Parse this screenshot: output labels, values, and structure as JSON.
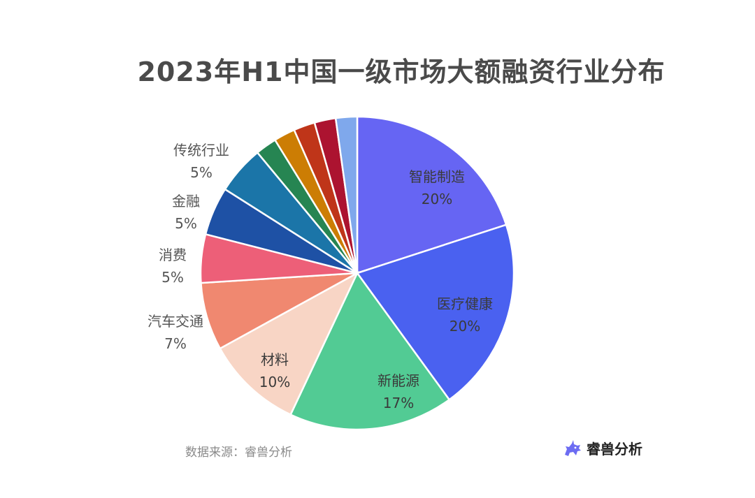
{
  "chart_data": {
    "type": "pie",
    "title": "2023年H1中国一级市场大额融资行业分布",
    "slices": [
      {
        "label": "智能制造",
        "value": 20,
        "display": "20%",
        "color": "#6665f3",
        "text_color": "#3a3a3a"
      },
      {
        "label": "医疗健康",
        "value": 20,
        "display": "20%",
        "color": "#4a61f0",
        "text_color": "#3a3a3a"
      },
      {
        "label": "新能源",
        "value": 17,
        "display": "17%",
        "color": "#52cb94",
        "text_color": "#3a3a3a"
      },
      {
        "label": "材料",
        "value": 10,
        "display": "10%",
        "color": "#f8d5c5",
        "text_color": "#3a3a3a"
      },
      {
        "label": "汽车交通",
        "value": 7,
        "display": "7%",
        "color": "#f08870",
        "text_color": "#555555"
      },
      {
        "label": "消费",
        "value": 5,
        "display": "5%",
        "color": "#ed5f78",
        "text_color": "#555555"
      },
      {
        "label": "金融",
        "value": 5,
        "display": "5%",
        "color": "#1e51a5",
        "text_color": "#555555"
      },
      {
        "label": "传统行业",
        "value": 5,
        "display": "5%",
        "color": "#1b75a8",
        "text_color": "#555555"
      },
      {
        "label": "",
        "value": 2.2,
        "display": "",
        "color": "#268552",
        "text_color": ""
      },
      {
        "label": "",
        "value": 2.2,
        "display": "",
        "color": "#cc7d04",
        "text_color": ""
      },
      {
        "label": "",
        "value": 2.2,
        "display": "",
        "color": "#bf3519",
        "text_color": ""
      },
      {
        "label": "",
        "value": 2.2,
        "display": "",
        "color": "#ac1330",
        "text_color": ""
      },
      {
        "label": "",
        "value": 2.2,
        "display": "",
        "color": "#7fa8ec",
        "text_color": ""
      }
    ]
  },
  "footer": {
    "source": "数据来源：睿兽分析",
    "brand": "睿兽分析"
  }
}
